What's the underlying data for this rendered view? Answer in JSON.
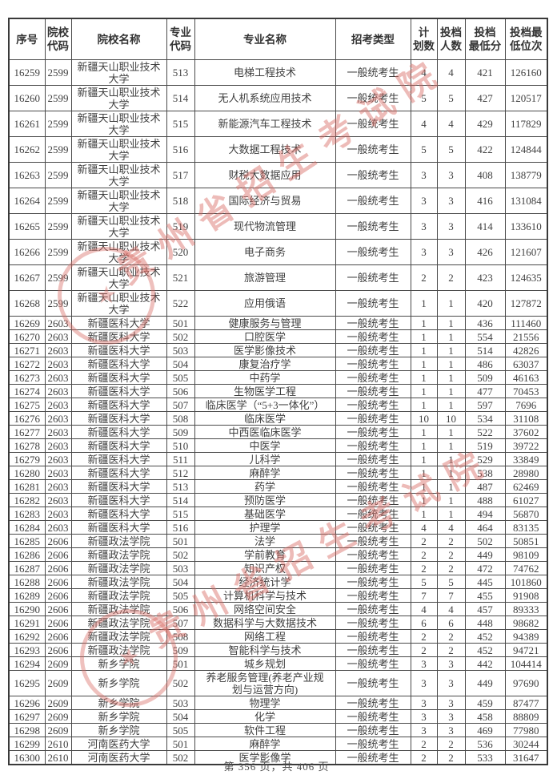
{
  "table": {
    "headers": [
      "序号",
      "院校\n代码",
      "院校名称",
      "专业\n代码",
      "专业名称",
      "招考类型",
      "计\n划数",
      "投档\n人数",
      "投档\n最低分",
      "投档最\n低位次"
    ],
    "rows": [
      [
        "16259",
        "2599",
        "新疆天山职业技术大学",
        "513",
        "电梯工程技术",
        "一般统考生",
        "4",
        "4",
        "421",
        "126160"
      ],
      [
        "16260",
        "2599",
        "新疆天山职业技术大学",
        "514",
        "无人机系统应用技术",
        "一般统考生",
        "5",
        "5",
        "427",
        "120517"
      ],
      [
        "16261",
        "2599",
        "新疆天山职业技术大学",
        "515",
        "新能源汽车工程技术",
        "一般统考生",
        "4",
        "4",
        "429",
        "117829"
      ],
      [
        "16262",
        "2599",
        "新疆天山职业技术大学",
        "516",
        "大数据工程技术",
        "一般统考生",
        "5",
        "5",
        "422",
        "124844"
      ],
      [
        "16263",
        "2599",
        "新疆天山职业技术大学",
        "517",
        "财税大数据应用",
        "一般统考生",
        "3",
        "3",
        "408",
        "138779"
      ],
      [
        "16264",
        "2599",
        "新疆天山职业技术大学",
        "518",
        "国际经济与贸易",
        "一般统考生",
        "3",
        "3",
        "416",
        "131084"
      ],
      [
        "16265",
        "2599",
        "新疆天山职业技术大学",
        "519",
        "现代物流管理",
        "一般统考生",
        "3",
        "3",
        "414",
        "133610"
      ],
      [
        "16266",
        "2599",
        "新疆天山职业技术大学",
        "520",
        "电子商务",
        "一般统考生",
        "3",
        "3",
        "426",
        "121607"
      ],
      [
        "16267",
        "2599",
        "新疆天山职业技术大学",
        "521",
        "旅游管理",
        "一般统考生",
        "2",
        "2",
        "423",
        "124635"
      ],
      [
        "16268",
        "2599",
        "新疆天山职业技术大学",
        "522",
        "应用俄语",
        "一般统考生",
        "1",
        "1",
        "420",
        "127872"
      ],
      [
        "16269",
        "2603",
        "新疆医科大学",
        "501",
        "健康服务与管理",
        "一般统考生",
        "1",
        "1",
        "436",
        "111460"
      ],
      [
        "16270",
        "2603",
        "新疆医科大学",
        "502",
        "口腔医学",
        "一般统考生",
        "1",
        "1",
        "554",
        "21556"
      ],
      [
        "16271",
        "2603",
        "新疆医科大学",
        "503",
        "医学影像技术",
        "一般统考生",
        "1",
        "1",
        "514",
        "42826"
      ],
      [
        "16272",
        "2603",
        "新疆医科大学",
        "504",
        "康复治疗学",
        "一般统考生",
        "1",
        "1",
        "486",
        "63037"
      ],
      [
        "16273",
        "2603",
        "新疆医科大学",
        "505",
        "中药学",
        "一般统考生",
        "1",
        "1",
        "509",
        "46163"
      ],
      [
        "16274",
        "2603",
        "新疆医科大学",
        "506",
        "生物医学工程",
        "一般统考生",
        "1",
        "1",
        "477",
        "70453"
      ],
      [
        "16275",
        "2603",
        "新疆医科大学",
        "507",
        "临床医学（“5+3一体化”）",
        "一般统考生",
        "1",
        "1",
        "597",
        "7696"
      ],
      [
        "16276",
        "2603",
        "新疆医科大学",
        "508",
        "临床医学",
        "一般统考生",
        "10",
        "10",
        "534",
        "31108"
      ],
      [
        "16277",
        "2603",
        "新疆医科大学",
        "509",
        "中西医临床医学",
        "一般统考生",
        "1",
        "1",
        "522",
        "37602"
      ],
      [
        "16278",
        "2603",
        "新疆医科大学",
        "510",
        "中医学",
        "一般统考生",
        "1",
        "1",
        "519",
        "39722"
      ],
      [
        "16279",
        "2603",
        "新疆医科大学",
        "511",
        "儿科学",
        "一般统考生",
        "1",
        "1",
        "529",
        "33849"
      ],
      [
        "16280",
        "2603",
        "新疆医科大学",
        "512",
        "麻醉学",
        "一般统考生",
        "1",
        "1",
        "538",
        "28980"
      ],
      [
        "16281",
        "2603",
        "新疆医科大学",
        "513",
        "药学",
        "一般统考生",
        "1",
        "1",
        "487",
        "62469"
      ],
      [
        "16282",
        "2603",
        "新疆医科大学",
        "514",
        "预防医学",
        "一般统考生",
        "1",
        "1",
        "488",
        "61027"
      ],
      [
        "16283",
        "2603",
        "新疆医科大学",
        "515",
        "基础医学",
        "一般统考生",
        "1",
        "1",
        "494",
        "56870"
      ],
      [
        "16284",
        "2603",
        "新疆医科大学",
        "516",
        "护理学",
        "一般统考生",
        "4",
        "4",
        "464",
        "83135"
      ],
      [
        "16285",
        "2606",
        "新疆政法学院",
        "501",
        "法学",
        "一般统考生",
        "2",
        "2",
        "502",
        "50851"
      ],
      [
        "16286",
        "2606",
        "新疆政法学院",
        "502",
        "学前教育",
        "一般统考生",
        "2",
        "2",
        "449",
        "98109"
      ],
      [
        "16287",
        "2606",
        "新疆政法学院",
        "503",
        "知识产权",
        "一般统考生",
        "2",
        "2",
        "472",
        "74762"
      ],
      [
        "16288",
        "2606",
        "新疆政法学院",
        "504",
        "经济统计学",
        "一般统考生",
        "5",
        "5",
        "445",
        "101860"
      ],
      [
        "16289",
        "2606",
        "新疆政法学院",
        "505",
        "计算机科学与技术",
        "一般统考生",
        "7",
        "7",
        "455",
        "91908"
      ],
      [
        "16290",
        "2606",
        "新疆政法学院",
        "506",
        "网络空间安全",
        "一般统考生",
        "4",
        "4",
        "457",
        "89333"
      ],
      [
        "16291",
        "2606",
        "新疆政法学院",
        "507",
        "数据科学与大数据技术",
        "一般统考生",
        "6",
        "6",
        "448",
        "98682"
      ],
      [
        "16292",
        "2606",
        "新疆政法学院",
        "508",
        "网络工程",
        "一般统考生",
        "2",
        "2",
        "452",
        "94389"
      ],
      [
        "16293",
        "2606",
        "新疆政法学院",
        "509",
        "智能科学与技术",
        "一般统考生",
        "2",
        "2",
        "452",
        "94721"
      ],
      [
        "16294",
        "2609",
        "新乡学院",
        "501",
        "城乡规划",
        "一般统考生",
        "3",
        "3",
        "442",
        "104414"
      ],
      [
        "16295",
        "2609",
        "新乡学院",
        "502",
        "养老服务管理(养老产业规划与运营方向)",
        "一般统考生",
        "3",
        "3",
        "449",
        "97690"
      ],
      [
        "16296",
        "2609",
        "新乡学院",
        "503",
        "物理学",
        "一般统考生",
        "3",
        "3",
        "459",
        "87477"
      ],
      [
        "16297",
        "2609",
        "新乡学院",
        "504",
        "化学",
        "一般统考生",
        "3",
        "3",
        "458",
        "88809"
      ],
      [
        "16298",
        "2609",
        "新乡学院",
        "505",
        "软件工程",
        "一般统考生",
        "3",
        "3",
        "469",
        "77980"
      ],
      [
        "16299",
        "2610",
        "河南医药大学",
        "501",
        "麻醉学",
        "一般统考生",
        "2",
        "2",
        "536",
        "30244"
      ],
      [
        "16300",
        "2610",
        "河南医药大学",
        "502",
        "医学影像学",
        "一般统考生",
        "2",
        "2",
        "533",
        "31647"
      ]
    ]
  },
  "footer": {
    "page_info": "第 356 页，共 406 页"
  },
  "watermark": {
    "text": "贵州省招生考试院",
    "color": "#d96b63",
    "star": "★"
  }
}
